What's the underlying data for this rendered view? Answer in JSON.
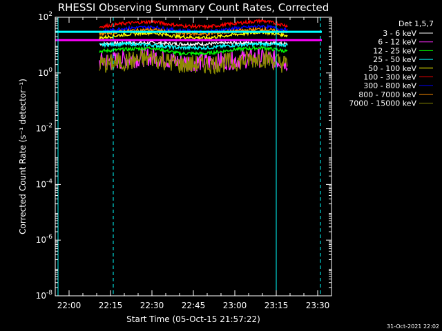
{
  "chart_data": {
    "type": "line",
    "title": "RHESSI Observing Summary Count Rates, Corrected",
    "xlabel": "Start Time (05-Oct-15 21:57:22)",
    "ylabel": "Corrected Count Rate (s⁻¹ detector⁻¹)",
    "yscale": "log",
    "ylim": [
      1e-08,
      100
    ],
    "xlim": [
      "21:55",
      "23:35"
    ],
    "x_ticks": [
      "22:00",
      "22:15",
      "22:30",
      "22:45",
      "23:00",
      "23:15",
      "23:30"
    ],
    "y_ticks": [
      {
        "base": "10",
        "exp": "-8"
      },
      {
        "base": "10",
        "exp": "-6"
      },
      {
        "base": "10",
        "exp": "-4"
      },
      {
        "base": "10",
        "exp": "-2"
      },
      {
        "base": "10",
        "exp": "0"
      },
      {
        "base": "10",
        "exp": "2"
      }
    ],
    "legend_title": "Det 1,5,7",
    "legend_position": "right",
    "data_interval": [
      "22:11",
      "23:19"
    ],
    "series": [
      {
        "name": "3 - 6 keV",
        "color": "#ffffff",
        "x": [
          "22:11",
          "22:20",
          "22:30",
          "22:40",
          "22:50",
          "23:00",
          "23:10",
          "23:19"
        ],
        "y": [
          11,
          12,
          12,
          11,
          11,
          12,
          12,
          11
        ]
      },
      {
        "name": "6 - 12 keV",
        "color": "#ff2cff",
        "x": [
          "22:11",
          "22:20",
          "22:30",
          "22:40",
          "22:50",
          "23:00",
          "23:10",
          "23:19"
        ],
        "y": [
          2.5,
          3,
          4,
          2.5,
          2.5,
          3,
          3.5,
          2.5
        ]
      },
      {
        "name": "12 - 25 keV",
        "color": "#00ff00",
        "x": [
          "22:11",
          "22:20",
          "22:30",
          "22:40",
          "22:50",
          "23:00",
          "23:10",
          "23:19"
        ],
        "y": [
          6,
          7,
          8,
          5,
          5,
          7,
          8,
          6
        ]
      },
      {
        "name": "25 - 50 keV",
        "color": "#00ffff",
        "x": [
          "22:11",
          "22:20",
          "22:30",
          "22:40",
          "22:50",
          "23:00",
          "23:10",
          "23:19"
        ],
        "y": [
          10,
          11,
          10,
          8,
          8,
          10,
          11,
          10
        ]
      },
      {
        "name": "50 - 100 keV",
        "color": "#ffff00",
        "x": [
          "22:11",
          "22:20",
          "22:30",
          "22:40",
          "22:50",
          "23:00",
          "23:10",
          "23:19"
        ],
        "y": [
          18,
          24,
          28,
          20,
          18,
          24,
          30,
          22
        ]
      },
      {
        "name": "100 - 300 keV",
        "color": "#ff0000",
        "x": [
          "22:11",
          "22:20",
          "22:30",
          "22:40",
          "22:50",
          "23:00",
          "23:10",
          "23:19"
        ],
        "y": [
          45,
          60,
          70,
          50,
          45,
          60,
          75,
          50
        ]
      },
      {
        "name": "300 - 800 keV",
        "color": "#0000ff",
        "x": [
          "22:11",
          "22:20",
          "22:30",
          "22:40",
          "22:50",
          "23:00",
          "23:10",
          "23:19"
        ],
        "y": [
          30,
          40,
          45,
          33,
          30,
          40,
          48,
          35
        ]
      },
      {
        "name": "800 - 7000 keV",
        "color": "#ff8c00",
        "x": [
          "22:11",
          "22:20",
          "22:30",
          "22:40",
          "22:50",
          "23:00",
          "23:10",
          "23:19"
        ],
        "y": [
          25,
          32,
          36,
          27,
          25,
          32,
          38,
          28
        ]
      },
      {
        "name": "7000 - 15000 keV",
        "color": "#8b8b00",
        "x": [
          "22:11",
          "22:20",
          "22:30",
          "22:40",
          "22:50",
          "23:00",
          "23:10",
          "23:19"
        ],
        "y": [
          2,
          2.5,
          3.5,
          2,
          2,
          2.5,
          3.5,
          2
        ]
      }
    ],
    "reference_lines": [
      {
        "color": "#00ffff",
        "y": 30
      },
      {
        "color": "#ff00ff",
        "y": 15
      }
    ],
    "vertical_markers": [
      {
        "x": "21:56",
        "color": "#00ffff",
        "style": "solid"
      },
      {
        "x": "22:16",
        "color": "#00ffff",
        "style": "dashed"
      },
      {
        "x": "23:15",
        "color": "#00ffff",
        "style": "solid"
      },
      {
        "x": "23:31",
        "color": "#00ffff",
        "style": "dashed"
      }
    ],
    "timestamp": "31-Oct-2021 22:02"
  }
}
